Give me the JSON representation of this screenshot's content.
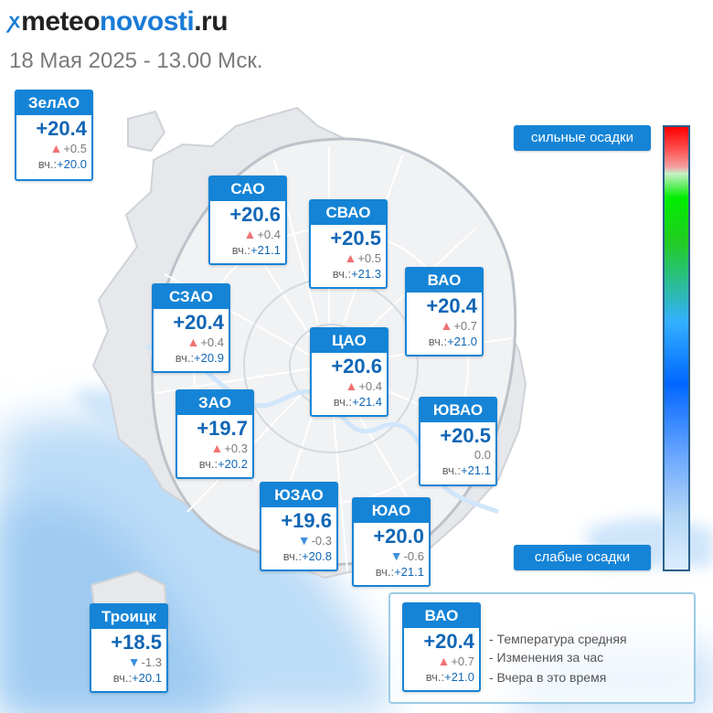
{
  "header": {
    "brand_mark": "ꭗ",
    "brand_part1": "meteo",
    "brand_part2": "novosti",
    "brand_part3": ".ru",
    "subtitle": "18 Мая 2025 - 13.00 Мск."
  },
  "colors": {
    "accent": "#1584d6",
    "temp_text": "#1166b5",
    "rise_arrow": "#f07272",
    "fall_arrow": "#3d8fdc",
    "precip_light": "#b8d9f7"
  },
  "yesterday_label": "вч.:",
  "districts": [
    {
      "name": "ЗелАО",
      "temp": "+20.4",
      "trend": "up",
      "arrow": "▲",
      "change": "+0.5",
      "yesterday": "+20.0"
    },
    {
      "name": "САО",
      "temp": "+20.6",
      "trend": "up",
      "arrow": "▲",
      "change": "+0.4",
      "yesterday": "+21.1"
    },
    {
      "name": "СВАО",
      "temp": "+20.5",
      "trend": "up",
      "arrow": "▲",
      "change": "+0.5",
      "yesterday": "+21.3"
    },
    {
      "name": "ВАО",
      "temp": "+20.4",
      "trend": "up",
      "arrow": "▲",
      "change": "+0.7",
      "yesterday": "+21.0"
    },
    {
      "name": "СЗАО",
      "temp": "+20.4",
      "trend": "up",
      "arrow": "▲",
      "change": "+0.4",
      "yesterday": "+20.9"
    },
    {
      "name": "ЦАО",
      "temp": "+20.6",
      "trend": "up",
      "arrow": "▲",
      "change": "+0.4",
      "yesterday": "+21.4"
    },
    {
      "name": "ЗАО",
      "temp": "+19.7",
      "trend": "up",
      "arrow": "▲",
      "change": "+0.3",
      "yesterday": "+20.2"
    },
    {
      "name": "ЮВАО",
      "temp": "+20.5",
      "trend": "none",
      "arrow": "",
      "change": "0.0",
      "yesterday": "+21.1"
    },
    {
      "name": "ЮЗАО",
      "temp": "+19.6",
      "trend": "down",
      "arrow": "▼",
      "change": "-0.3",
      "yesterday": "+20.8"
    },
    {
      "name": "ЮАО",
      "temp": "+20.0",
      "trend": "down",
      "arrow": "▼",
      "change": "-0.6",
      "yesterday": "+21.1"
    },
    {
      "name": "Троицк",
      "temp": "+18.5",
      "trend": "down",
      "arrow": "▼",
      "change": "-1.3",
      "yesterday": "+20.1"
    }
  ],
  "precip_scale": {
    "top_label": "сильные осадки",
    "bottom_label": "слабые осадки"
  },
  "legend": {
    "sample": {
      "name": "ВАО",
      "temp": "+20.4",
      "trend": "up",
      "arrow": "▲",
      "change": "+0.7",
      "yesterday": "+21.0"
    },
    "items": [
      "- Температура средняя",
      "- Изменения за час",
      "- Вчера в это время"
    ]
  }
}
